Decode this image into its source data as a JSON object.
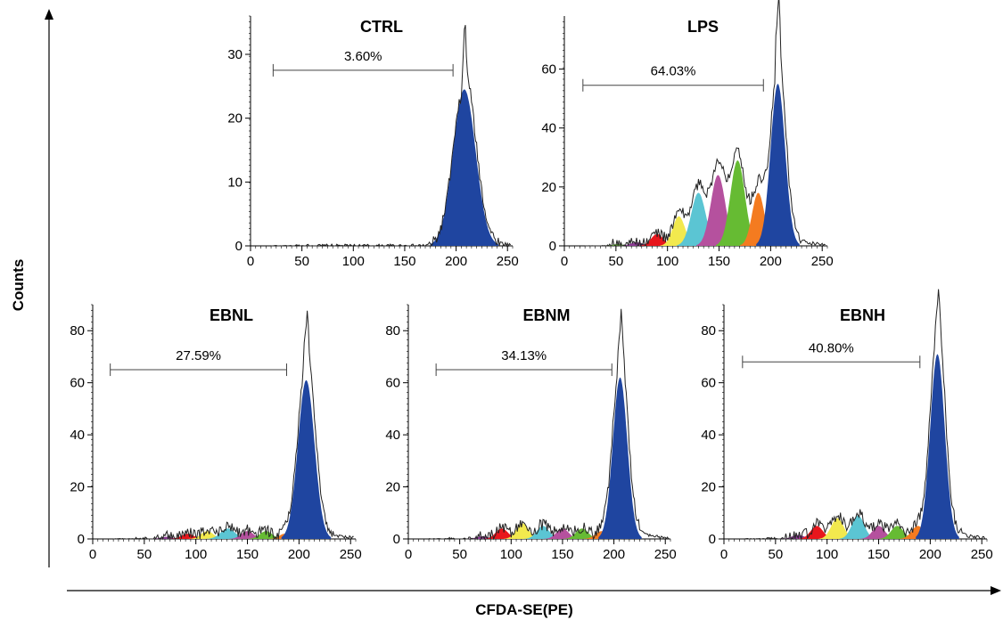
{
  "figure": {
    "ylabel": "Counts",
    "xlabel": "CFDA-SE(PE)"
  },
  "chart_data": [
    {
      "type": "area",
      "title": "CTRL",
      "xlim": [
        0,
        255
      ],
      "ylim": [
        0,
        36
      ],
      "xticks": [
        0,
        50,
        100,
        150,
        200,
        250
      ],
      "yticks": [
        0,
        10,
        20,
        30
      ],
      "gate": {
        "label": "3.60%",
        "x_start": 22,
        "x_end": 197,
        "y": 27.5
      },
      "outline_peak": 34,
      "generations": [
        {
          "name": "gen0",
          "color": "#1f45a0",
          "mean": 208,
          "sd": 11,
          "peak": 24.5
        }
      ]
    },
    {
      "type": "area",
      "title": "LPS",
      "xlim": [
        0,
        255
      ],
      "ylim": [
        0,
        78
      ],
      "xticks": [
        0,
        50,
        100,
        150,
        200,
        250
      ],
      "yticks": [
        0,
        20,
        40,
        60
      ],
      "gate": {
        "label": "64.03%",
        "x_start": 18,
        "x_end": 193,
        "y": 54.5
      },
      "outline_peak": 79,
      "generations": [
        {
          "name": "gen0",
          "color": "#1f45a0",
          "mean": 207,
          "sd": 7,
          "peak": 55
        },
        {
          "name": "gen1",
          "color": "#f47b20",
          "mean": 188,
          "sd": 6,
          "peak": 18
        },
        {
          "name": "gen2",
          "color": "#66bb33",
          "mean": 168,
          "sd": 7,
          "peak": 29
        },
        {
          "name": "gen3",
          "color": "#b5519e",
          "mean": 149,
          "sd": 7,
          "peak": 24
        },
        {
          "name": "gen4",
          "color": "#5bc5d3",
          "mean": 130,
          "sd": 7,
          "peak": 18
        },
        {
          "name": "gen5",
          "color": "#f2e94e",
          "mean": 111,
          "sd": 6,
          "peak": 10
        },
        {
          "name": "gen6",
          "color": "#e8161c",
          "mean": 90,
          "sd": 6,
          "peak": 4
        },
        {
          "name": "gen7",
          "color": "#8b3a94",
          "mean": 70,
          "sd": 6,
          "peak": 1.2
        },
        {
          "name": "gen8",
          "color": "#66bb33",
          "mean": 52,
          "sd": 5,
          "peak": 0.6
        }
      ]
    },
    {
      "type": "area",
      "title": "EBNL",
      "xlim": [
        0,
        255
      ],
      "ylim": [
        0,
        90
      ],
      "xticks": [
        0,
        50,
        100,
        150,
        200,
        250
      ],
      "yticks": [
        0,
        20,
        40,
        60,
        80
      ],
      "gate": {
        "label": "27.59%",
        "x_start": 17,
        "x_end": 188,
        "y": 65
      },
      "outline_peak": 83,
      "generations": [
        {
          "name": "gen0",
          "color": "#1f45a0",
          "mean": 207,
          "sd": 8,
          "peak": 61
        },
        {
          "name": "gen1",
          "color": "#f47b20",
          "mean": 186,
          "sd": 5,
          "peak": 2
        },
        {
          "name": "gen2",
          "color": "#66bb33",
          "mean": 168,
          "sd": 6,
          "peak": 3
        },
        {
          "name": "gen3",
          "color": "#b5519e",
          "mean": 150,
          "sd": 6,
          "peak": 3
        },
        {
          "name": "gen4",
          "color": "#5bc5d3",
          "mean": 131,
          "sd": 7,
          "peak": 4
        },
        {
          "name": "gen5",
          "color": "#f2e94e",
          "mean": 111,
          "sd": 6,
          "peak": 3
        },
        {
          "name": "gen6",
          "color": "#e8161c",
          "mean": 92,
          "sd": 6,
          "peak": 2
        },
        {
          "name": "gen7",
          "color": "#8b3a94",
          "mean": 72,
          "sd": 6,
          "peak": 0.8
        }
      ]
    },
    {
      "type": "area",
      "title": "EBNM",
      "xlim": [
        0,
        255
      ],
      "ylim": [
        0,
        90
      ],
      "xticks": [
        0,
        50,
        100,
        150,
        200,
        250
      ],
      "yticks": [
        0,
        20,
        40,
        60,
        80
      ],
      "gate": {
        "label": "34.13%",
        "x_start": 27,
        "x_end": 198,
        "y": 65
      },
      "outline_peak": 82,
      "generations": [
        {
          "name": "gen0",
          "color": "#1f45a0",
          "mean": 206,
          "sd": 7,
          "peak": 62
        },
        {
          "name": "gen1",
          "color": "#f47b20",
          "mean": 188,
          "sd": 6,
          "peak": 3
        },
        {
          "name": "gen2",
          "color": "#66bb33",
          "mean": 169,
          "sd": 6,
          "peak": 4
        },
        {
          "name": "gen3",
          "color": "#b5519e",
          "mean": 150,
          "sd": 6,
          "peak": 4
        },
        {
          "name": "gen4",
          "color": "#5bc5d3",
          "mean": 131,
          "sd": 6,
          "peak": 5
        },
        {
          "name": "gen5",
          "color": "#f2e94e",
          "mean": 111,
          "sd": 6,
          "peak": 6
        },
        {
          "name": "gen6",
          "color": "#e8161c",
          "mean": 91,
          "sd": 6,
          "peak": 4
        },
        {
          "name": "gen7",
          "color": "#8b3a94",
          "mean": 72,
          "sd": 6,
          "peak": 1
        }
      ]
    },
    {
      "type": "area",
      "title": "EBNH",
      "xlim": [
        0,
        255
      ],
      "ylim": [
        0,
        90
      ],
      "xticks": [
        0,
        50,
        100,
        150,
        200,
        250
      ],
      "yticks": [
        0,
        20,
        40,
        60,
        80
      ],
      "gate": {
        "label": "40.80%",
        "x_start": 18,
        "x_end": 190,
        "y": 68
      },
      "outline_peak": 89,
      "generations": [
        {
          "name": "gen0",
          "color": "#1f45a0",
          "mean": 207,
          "sd": 7,
          "peak": 71
        },
        {
          "name": "gen1",
          "color": "#f47b20",
          "mean": 188,
          "sd": 6,
          "peak": 5
        },
        {
          "name": "gen2",
          "color": "#66bb33",
          "mean": 168,
          "sd": 6,
          "peak": 5
        },
        {
          "name": "gen3",
          "color": "#b5519e",
          "mean": 150,
          "sd": 6,
          "peak": 5
        },
        {
          "name": "gen4",
          "color": "#5bc5d3",
          "mean": 130,
          "sd": 6,
          "peak": 9
        },
        {
          "name": "gen5",
          "color": "#f2e94e",
          "mean": 110,
          "sd": 6,
          "peak": 8
        },
        {
          "name": "gen6",
          "color": "#e8161c",
          "mean": 90,
          "sd": 6,
          "peak": 5
        },
        {
          "name": "gen7",
          "color": "#8b3a94",
          "mean": 72,
          "sd": 6,
          "peak": 1.5
        }
      ]
    }
  ]
}
